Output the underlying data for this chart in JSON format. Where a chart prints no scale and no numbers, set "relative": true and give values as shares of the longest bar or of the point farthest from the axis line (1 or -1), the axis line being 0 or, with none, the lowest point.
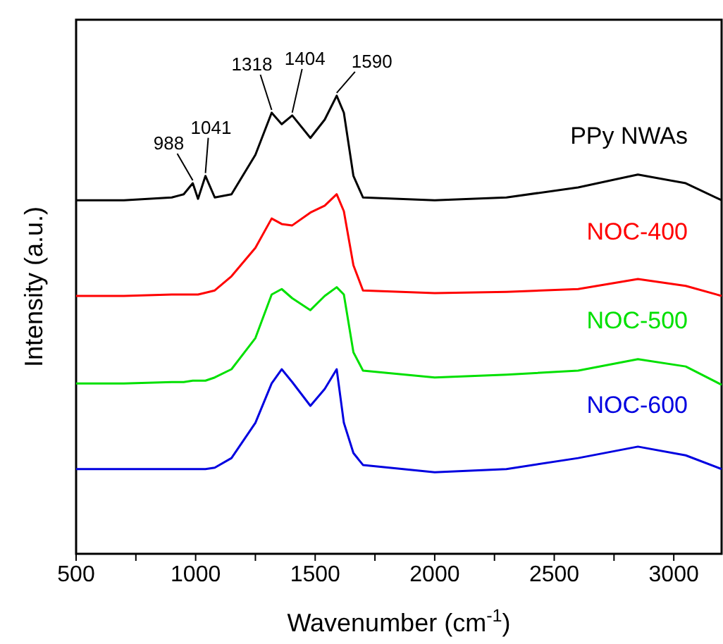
{
  "chart_data": {
    "type": "line",
    "relative": true,
    "xlabel": "Wavenumber (cm$^{-1}$)",
    "ylabel": "Intensity (a.u.)",
    "xlim": [
      500,
      3200
    ],
    "xticks": [
      500,
      {
        "value": 750,
        "label": null
      },
      1000,
      {
        "value": 1250,
        "label": null
      },
      1500,
      {
        "value": 1750,
        "label": null
      },
      2000,
      {
        "value": 2250,
        "label": null
      },
      2500,
      {
        "value": 2750,
        "label": null
      },
      3000
    ],
    "grid": false,
    "legend": false,
    "marker": "none",
    "line_style": "solid",
    "x": [
      500,
      700,
      900,
      950,
      988,
      1010,
      1041,
      1080,
      1150,
      1250,
      1318,
      1360,
      1404,
      1480,
      1540,
      1590,
      1620,
      1660,
      1700,
      2000,
      2300,
      2600,
      2850,
      3050,
      3200
    ],
    "series": [
      {
        "name": "PPy NWAs",
        "color": "#000000",
        "values": [
          0.772,
          0.772,
          0.778,
          0.785,
          0.809,
          0.775,
          0.825,
          0.778,
          0.785,
          0.871,
          0.963,
          0.938,
          0.957,
          0.908,
          0.948,
          1.0,
          0.963,
          0.825,
          0.778,
          0.772,
          0.778,
          0.8,
          0.828,
          0.809,
          0.772
        ]
      },
      {
        "name": "NOC-400",
        "color": "#ff0000",
        "values": [
          0.563,
          0.563,
          0.566,
          0.566,
          0.566,
          0.566,
          0.57,
          0.575,
          0.606,
          0.668,
          0.732,
          0.72,
          0.717,
          0.745,
          0.76,
          0.785,
          0.748,
          0.63,
          0.575,
          0.569,
          0.572,
          0.578,
          0.6,
          0.585,
          0.563
        ]
      },
      {
        "name": "NOC-500",
        "color": "#00e000",
        "values": [
          0.372,
          0.372,
          0.375,
          0.375,
          0.378,
          0.378,
          0.378,
          0.385,
          0.403,
          0.471,
          0.566,
          0.578,
          0.558,
          0.532,
          0.563,
          0.582,
          0.566,
          0.44,
          0.4,
          0.385,
          0.391,
          0.4,
          0.425,
          0.409,
          0.369
        ]
      },
      {
        "name": "NOC-600",
        "color": "#0000e0",
        "values": [
          0.185,
          0.185,
          0.185,
          0.185,
          0.185,
          0.185,
          0.185,
          0.188,
          0.209,
          0.286,
          0.372,
          0.403,
          0.375,
          0.323,
          0.36,
          0.403,
          0.286,
          0.22,
          0.194,
          0.178,
          0.185,
          0.209,
          0.234,
          0.215,
          0.185
        ]
      }
    ],
    "annotations": [
      {
        "text": "988",
        "x": 988,
        "y": 0.809
      },
      {
        "text": "1041",
        "x": 1041,
        "y": 0.825
      },
      {
        "text": "1318",
        "x": 1318,
        "y": 0.963
      },
      {
        "text": "1404",
        "x": 1404,
        "y": 0.957
      },
      {
        "text": "1590",
        "x": 1590,
        "y": 1.0
      }
    ]
  }
}
